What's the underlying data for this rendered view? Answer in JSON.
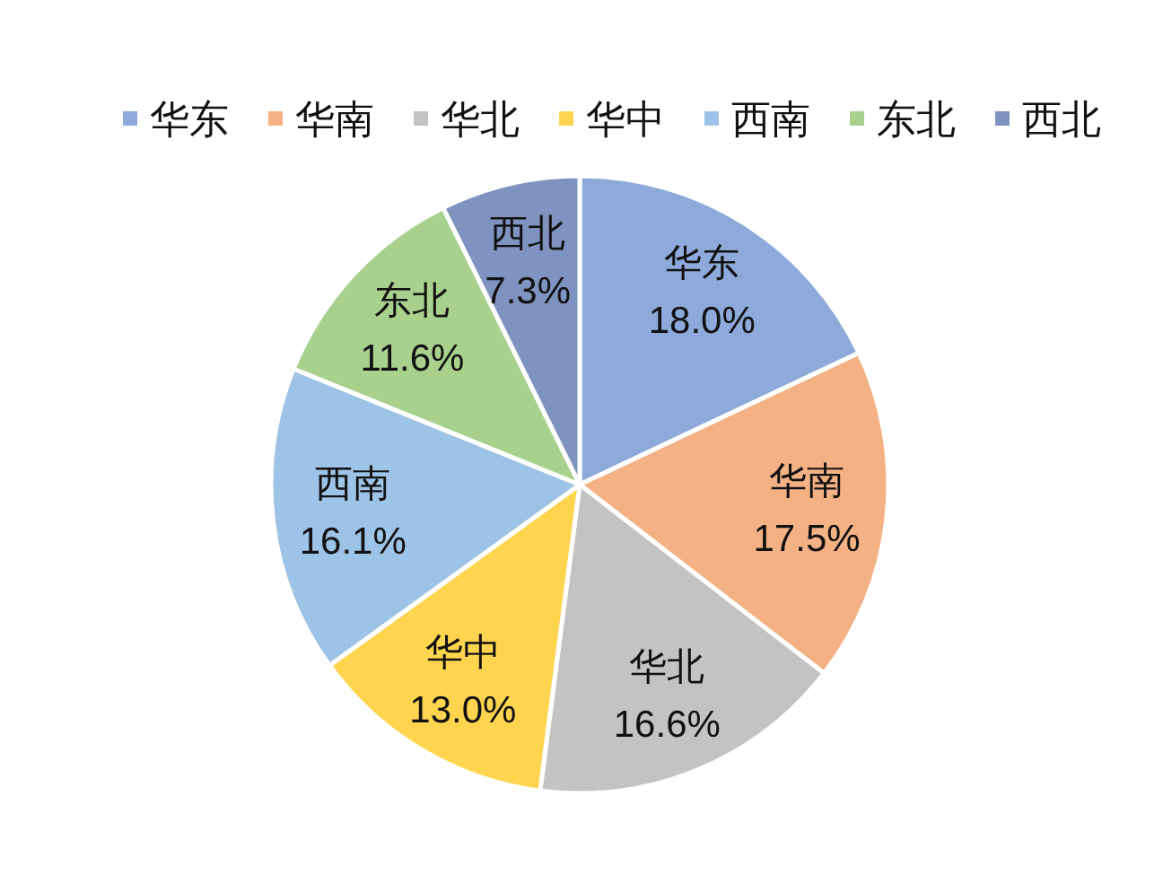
{
  "chart_data": {
    "type": "pie",
    "categories": [
      "华东",
      "华南",
      "华北",
      "华中",
      "西南",
      "东北",
      "西北"
    ],
    "values": [
      18.0,
      17.5,
      16.6,
      13.0,
      16.1,
      11.6,
      7.3
    ],
    "value_labels": [
      "18.0%",
      "17.5%",
      "16.6%",
      "13.0%",
      "16.1%",
      "11.6%",
      "7.3%"
    ],
    "colors": [
      "#8eaadb",
      "#f4b183",
      "#c3c3c3",
      "#ffd54f",
      "#9dc3e6",
      "#a9d18e",
      "#7f93c0"
    ],
    "legend": "top"
  }
}
